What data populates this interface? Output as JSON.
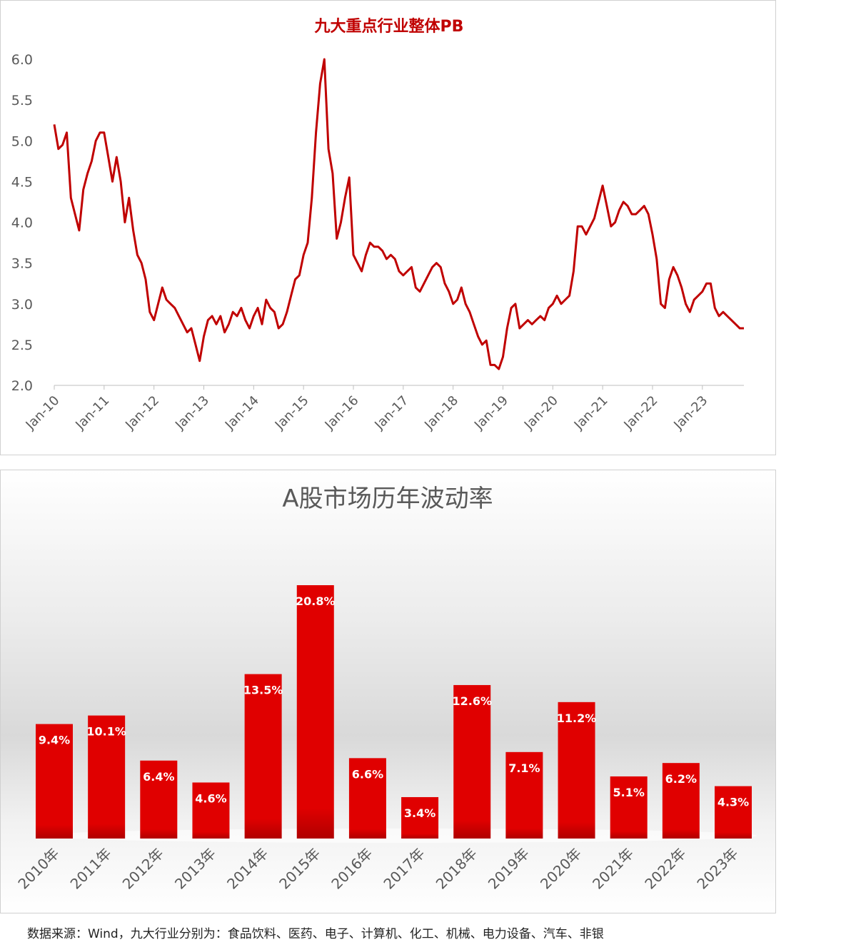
{
  "chart_data": [
    {
      "type": "line",
      "title": "九大重点行业整体PB",
      "color": "#c00000",
      "x": [
        "2010-01",
        "2010-02",
        "2010-03",
        "2010-04",
        "2010-05",
        "2010-06",
        "2010-07",
        "2010-08",
        "2010-09",
        "2010-10",
        "2010-11",
        "2010-12",
        "2011-01",
        "2011-02",
        "2011-03",
        "2011-04",
        "2011-05",
        "2011-06",
        "2011-07",
        "2011-08",
        "2011-09",
        "2011-10",
        "2011-11",
        "2011-12",
        "2012-01",
        "2012-02",
        "2012-03",
        "2012-04",
        "2012-05",
        "2012-06",
        "2012-07",
        "2012-08",
        "2012-09",
        "2012-10",
        "2012-11",
        "2012-12",
        "2013-01",
        "2013-02",
        "2013-03",
        "2013-04",
        "2013-05",
        "2013-06",
        "2013-07",
        "2013-08",
        "2013-09",
        "2013-10",
        "2013-11",
        "2013-12",
        "2014-01",
        "2014-02",
        "2014-03",
        "2014-04",
        "2014-05",
        "2014-06",
        "2014-07",
        "2014-08",
        "2014-09",
        "2014-10",
        "2014-11",
        "2014-12",
        "2015-01",
        "2015-02",
        "2015-03",
        "2015-04",
        "2015-05",
        "2015-06",
        "2015-07",
        "2015-08",
        "2015-09",
        "2015-10",
        "2015-11",
        "2015-12",
        "2016-01",
        "2016-02",
        "2016-03",
        "2016-04",
        "2016-05",
        "2016-06",
        "2016-07",
        "2016-08",
        "2016-09",
        "2016-10",
        "2016-11",
        "2016-12",
        "2017-01",
        "2017-02",
        "2017-03",
        "2017-04",
        "2017-05",
        "2017-06",
        "2017-07",
        "2017-08",
        "2017-09",
        "2017-10",
        "2017-11",
        "2017-12",
        "2018-01",
        "2018-02",
        "2018-03",
        "2018-04",
        "2018-05",
        "2018-06",
        "2018-07",
        "2018-08",
        "2018-09",
        "2018-10",
        "2018-11",
        "2018-12",
        "2019-01",
        "2019-02",
        "2019-03",
        "2019-04",
        "2019-05",
        "2019-06",
        "2019-07",
        "2019-08",
        "2019-09",
        "2019-10",
        "2019-11",
        "2019-12",
        "2020-01",
        "2020-02",
        "2020-03",
        "2020-04",
        "2020-05",
        "2020-06",
        "2020-07",
        "2020-08",
        "2020-09",
        "2020-10",
        "2020-11",
        "2020-12",
        "2021-01",
        "2021-02",
        "2021-03",
        "2021-04",
        "2021-05",
        "2021-06",
        "2021-07",
        "2021-08",
        "2021-09",
        "2021-10",
        "2021-11",
        "2021-12",
        "2022-01",
        "2022-02",
        "2022-03",
        "2022-04",
        "2022-05",
        "2022-06",
        "2022-07",
        "2022-08",
        "2022-09",
        "2022-10",
        "2022-11",
        "2022-12",
        "2023-01",
        "2023-02",
        "2023-03",
        "2023-04",
        "2023-05",
        "2023-06",
        "2023-07",
        "2023-08",
        "2023-09",
        "2023-10",
        "2023-11"
      ],
      "values": [
        5.2,
        4.9,
        4.95,
        5.1,
        4.3,
        4.1,
        3.9,
        4.4,
        4.6,
        4.75,
        5.0,
        5.1,
        5.1,
        4.8,
        4.5,
        4.8,
        4.5,
        4.0,
        4.3,
        3.9,
        3.6,
        3.5,
        3.3,
        2.9,
        2.8,
        3.0,
        3.2,
        3.05,
        3.0,
        2.95,
        2.85,
        2.75,
        2.65,
        2.7,
        2.5,
        2.3,
        2.6,
        2.8,
        2.85,
        2.75,
        2.85,
        2.65,
        2.75,
        2.9,
        2.85,
        2.95,
        2.8,
        2.7,
        2.85,
        2.95,
        2.75,
        3.05,
        2.95,
        2.9,
        2.7,
        2.75,
        2.9,
        3.1,
        3.3,
        3.35,
        3.6,
        3.75,
        4.3,
        5.1,
        5.7,
        6.0,
        4.9,
        4.6,
        3.8,
        4.0,
        4.3,
        4.55,
        3.6,
        3.5,
        3.4,
        3.6,
        3.75,
        3.7,
        3.7,
        3.65,
        3.55,
        3.6,
        3.55,
        3.4,
        3.35,
        3.4,
        3.45,
        3.2,
        3.15,
        3.25,
        3.35,
        3.45,
        3.5,
        3.45,
        3.25,
        3.15,
        3.0,
        3.05,
        3.2,
        3.0,
        2.9,
        2.75,
        2.6,
        2.5,
        2.55,
        2.25,
        2.25,
        2.2,
        2.35,
        2.7,
        2.95,
        3.0,
        2.7,
        2.75,
        2.8,
        2.75,
        2.8,
        2.85,
        2.8,
        2.95,
        3.0,
        3.1,
        3.0,
        3.05,
        3.1,
        3.4,
        3.95,
        3.95,
        3.85,
        3.95,
        4.05,
        4.25,
        4.45,
        4.2,
        3.95,
        4.0,
        4.15,
        4.25,
        4.2,
        4.1,
        4.1,
        4.15,
        4.2,
        4.1,
        3.85,
        3.55,
        3.0,
        2.95,
        3.3,
        3.45,
        3.35,
        3.2,
        3.0,
        2.9,
        3.05,
        3.1,
        3.15,
        3.25,
        3.25,
        2.95,
        2.85,
        2.9,
        2.85,
        2.8,
        2.75,
        2.7,
        2.7
      ],
      "xlim": [
        "2010-01",
        "2023-11"
      ],
      "xticks": [
        {
          "value": "2010-01",
          "label": "Jan-10"
        },
        {
          "value": "2011-01",
          "label": "Jan-11"
        },
        {
          "value": "2012-01",
          "label": "Jan-12"
        },
        {
          "value": "2013-01",
          "label": "Jan-13"
        },
        {
          "value": "2014-01",
          "label": "Jan-14"
        },
        {
          "value": "2015-01",
          "label": "Jan-15"
        },
        {
          "value": "2016-01",
          "label": "Jan-16"
        },
        {
          "value": "2017-01",
          "label": "Jan-17"
        },
        {
          "value": "2018-01",
          "label": "Jan-18"
        },
        {
          "value": "2019-01",
          "label": "Jan-19"
        },
        {
          "value": "2020-01",
          "label": "Jan-20"
        },
        {
          "value": "2021-01",
          "label": "Jan-21"
        },
        {
          "value": "2022-01",
          "label": "Jan-22"
        },
        {
          "value": "2023-01",
          "label": "Jan-23"
        }
      ],
      "ylim": [
        2,
        6
      ],
      "yticks": [
        {
          "value": 2,
          "label": "2.0"
        },
        {
          "value": 2.5,
          "label": "2.5"
        },
        {
          "value": 3,
          "label": "3.0"
        },
        {
          "value": 3.5,
          "label": "3.5"
        },
        {
          "value": 4,
          "label": "4.0"
        },
        {
          "value": 4.5,
          "label": "4.5"
        },
        {
          "value": 5,
          "label": "5.0"
        },
        {
          "value": 5.5,
          "label": "5.5"
        },
        {
          "value": 6,
          "label": "6.0"
        }
      ]
    },
    {
      "type": "bar",
      "title": "A股市场历年波动率",
      "color": "#e00000",
      "categories": [
        "2010年",
        "2011年",
        "2012年",
        "2013年",
        "2014年",
        "2015年",
        "2016年",
        "2017年",
        "2018年",
        "2019年",
        "2020年",
        "2021年",
        "2022年",
        "2023年"
      ],
      "values": [
        9.4,
        10.1,
        6.4,
        4.6,
        13.5,
        20.8,
        6.6,
        3.4,
        12.6,
        7.1,
        11.2,
        5.1,
        6.2,
        4.3
      ],
      "value_labels": [
        "9.4%",
        "10.1%",
        "6.4%",
        "4.6%",
        "13.5%",
        "20.8%",
        "6.6%",
        "3.4%",
        "12.6%",
        "7.1%",
        "11.2%",
        "5.1%",
        "6.2%",
        "4.3%"
      ]
    }
  ],
  "source": "数据来源：Wind，九大行业分别为：食品饮料、医药、电子、计算机、化工、机械、电力设备、汽车、非银"
}
